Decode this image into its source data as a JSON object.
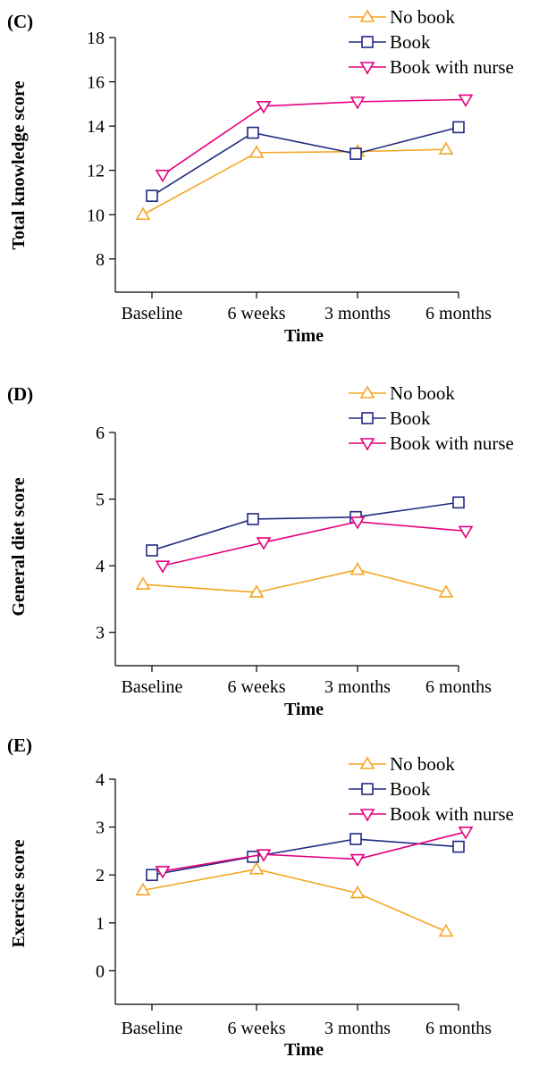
{
  "chart_data": [
    {
      "type": "line",
      "panel_label": "(C)",
      "categories": [
        "Baseline",
        "6 weeks",
        "3 months",
        "6 months"
      ],
      "xlabel": "Time",
      "ylabel": "Total knowledge score",
      "ylim": [
        6.5,
        18
      ],
      "yticks": [
        8,
        10,
        12,
        14,
        16,
        18
      ],
      "legend_position": "top-right",
      "series": [
        {
          "name": "No book",
          "values": [
            10.0,
            12.8,
            12.85,
            12.95
          ],
          "color": "#F5A623",
          "marker": "triangle-up"
        },
        {
          "name": "Book",
          "values": [
            10.85,
            13.7,
            12.75,
            13.95
          ],
          "color": "#1F2A80",
          "marker": "square"
        },
        {
          "name": "Book with nurse",
          "values": [
            11.8,
            14.9,
            15.1,
            15.2
          ],
          "color": "#E6007E",
          "marker": "triangle-down"
        }
      ]
    },
    {
      "type": "line",
      "panel_label": "(D)",
      "categories": [
        "Baseline",
        "6 weeks",
        "3 months",
        "6 months"
      ],
      "xlabel": "Time",
      "ylabel": "General diet score",
      "ylim": [
        2.5,
        6
      ],
      "yticks": [
        3,
        4,
        5,
        6
      ],
      "legend_position": "top-right",
      "series": [
        {
          "name": "No book",
          "values": [
            3.72,
            3.6,
            3.94,
            3.6
          ],
          "color": "#F5A623",
          "marker": "triangle-up"
        },
        {
          "name": "Book",
          "values": [
            4.23,
            4.7,
            4.73,
            4.95
          ],
          "color": "#1F2A80",
          "marker": "square"
        },
        {
          "name": "Book with nurse",
          "values": [
            4.0,
            4.35,
            4.66,
            4.52
          ],
          "color": "#E6007E",
          "marker": "triangle-down"
        }
      ]
    },
    {
      "type": "line",
      "panel_label": "(E)",
      "categories": [
        "Baseline",
        "6 weeks",
        "3 months",
        "6 months"
      ],
      "xlabel": "Time",
      "ylabel": "Exercise score",
      "ylim": [
        -0.7,
        4
      ],
      "yticks": [
        0,
        1,
        2,
        3,
        4
      ],
      "legend_position": "top-right",
      "series": [
        {
          "name": "No book",
          "values": [
            1.68,
            2.12,
            1.62,
            0.82
          ],
          "color": "#F5A623",
          "marker": "triangle-up"
        },
        {
          "name": "Book",
          "values": [
            2.0,
            2.38,
            2.75,
            2.59
          ],
          "color": "#1F2A80",
          "marker": "square"
        },
        {
          "name": "Book with nurse",
          "values": [
            2.08,
            2.43,
            2.33,
            2.9
          ],
          "color": "#E6007E",
          "marker": "triangle-down"
        }
      ]
    }
  ]
}
